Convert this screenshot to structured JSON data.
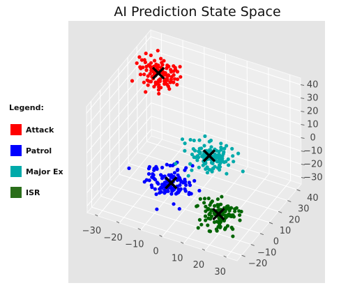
{
  "chart_data": {
    "type": "scatter",
    "title": "AI Prediction State Space",
    "axes_3d": true,
    "grid": true,
    "legend_position": "left",
    "x_ticks": [
      -30,
      -20,
      -10,
      0,
      10,
      20,
      30
    ],
    "y_ticks": [
      -20,
      -10,
      0,
      10,
      20,
      30,
      40
    ],
    "z_ticks": [
      -30,
      -20,
      -10,
      0,
      10,
      20,
      30,
      40
    ],
    "xlim": [
      -35,
      35
    ],
    "ylim": [
      -25,
      45
    ],
    "zlim": [
      -35,
      45
    ],
    "legend_title": "Legend:",
    "series": [
      {
        "name": "Attack",
        "color": "#ff0000",
        "count": 110,
        "center": [
          -25,
          30,
          30
        ],
        "spread": [
          5,
          4,
          5
        ],
        "centroid": [
          -25,
          30,
          30
        ]
      },
      {
        "name": "Patrol",
        "color": "#0000ff",
        "count": 130,
        "center": [
          -3,
          -8,
          -10
        ],
        "spread": [
          5,
          4,
          5
        ],
        "centroid": [
          -3,
          -8,
          -10
        ]
      },
      {
        "name": "Major Ex",
        "color": "#00aaaa",
        "count": 120,
        "center": [
          8,
          8,
          3
        ],
        "spread": [
          5,
          4,
          4
        ],
        "centroid": [
          8,
          8,
          3
        ]
      },
      {
        "name": "ISR",
        "color": "#006400",
        "count": 110,
        "center": [
          20,
          -10,
          -20
        ],
        "spread": [
          5,
          4,
          5
        ],
        "centroid": [
          20,
          -10,
          -20
        ]
      }
    ]
  }
}
